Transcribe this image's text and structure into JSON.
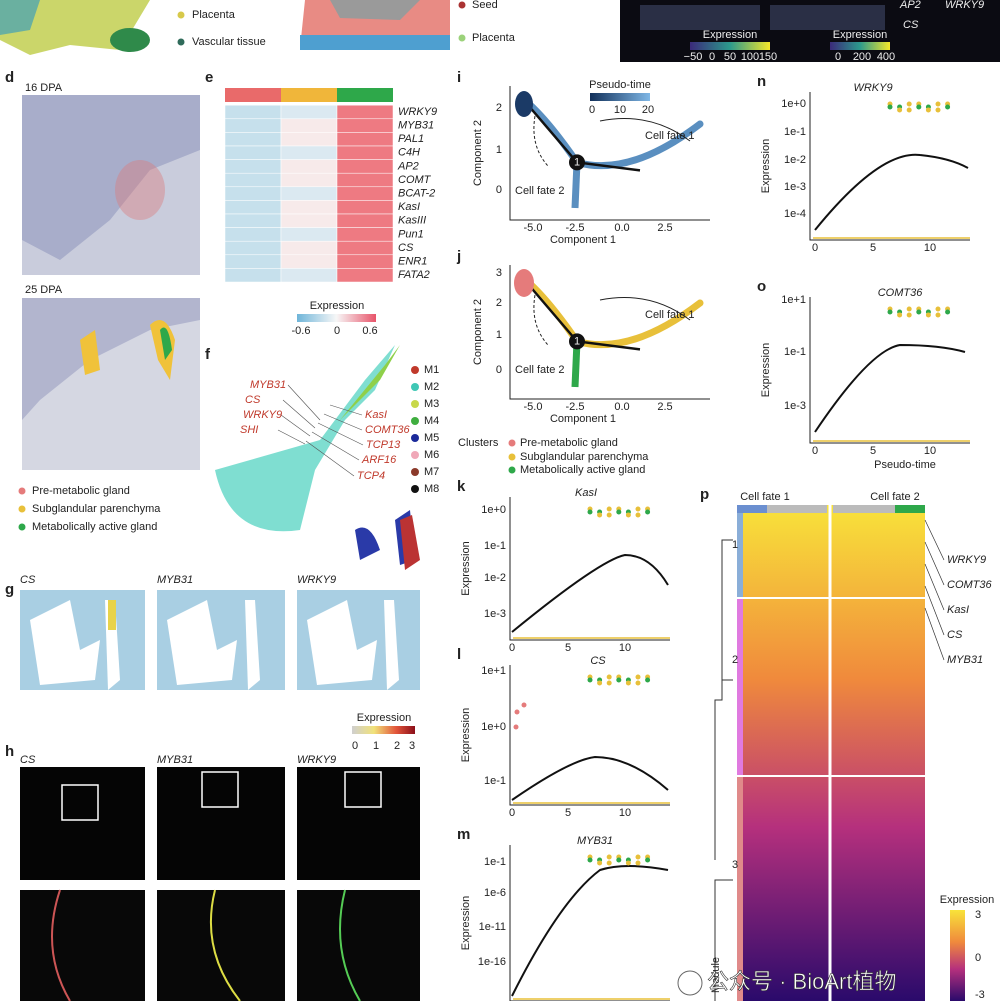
{
  "top": {
    "left_legend": [
      "Placenta",
      "Vascular tissue"
    ],
    "mid_legend": [
      "Seed",
      "Placenta"
    ],
    "right_genes": [
      "AP2",
      "WRKY9",
      "CS"
    ],
    "colorbars": [
      {
        "title": "Expression",
        "ticks": [
          "−50",
          "0",
          "50",
          "100",
          "150"
        ]
      },
      {
        "title": "Expression",
        "ticks": [
          "0",
          "200",
          "400"
        ]
      }
    ]
  },
  "d": {
    "label": "d",
    "sections": [
      "16 DPA",
      "25 DPA"
    ],
    "legend": [
      "Pre-metabolic gland",
      "Subglandular parenchyma",
      "Metabolically active gland"
    ]
  },
  "e": {
    "label": "e",
    "genes": [
      "WRKY9",
      "MYB31",
      "PAL1",
      "C4H",
      "AP2",
      "COMT",
      "BCAT-2",
      "KasI",
      "KasIII",
      "Pun1",
      "CS",
      "ENR1",
      "FATA2"
    ],
    "legend_title": "Expression",
    "legend_ticks": [
      "-0.6",
      "0",
      "0.6"
    ]
  },
  "f": {
    "label": "f",
    "left_genes": [
      "MYB31",
      "CS",
      "WRKY9",
      "SHI"
    ],
    "right_genes": [
      "KasI",
      "COMT36",
      "TCP13",
      "ARF16",
      "TCP4"
    ],
    "modules": [
      "M1",
      "M2",
      "M3",
      "M4",
      "M5",
      "M6",
      "M7",
      "M8"
    ]
  },
  "g": {
    "label": "g",
    "genes": [
      "CS",
      "MYB31",
      "WRKY9"
    ],
    "legend_title": "Expression",
    "legend_ticks": [
      "0",
      "1",
      "2",
      "3"
    ]
  },
  "h": {
    "label": "h",
    "genes": [
      "CS",
      "MYB31",
      "WRKY9"
    ]
  },
  "i": {
    "label": "i",
    "legend_title": "Pseudo-time",
    "legend_ticks": [
      "0",
      "10",
      "20"
    ],
    "fate1": "Cell fate 1",
    "fate2": "Cell fate 2",
    "node": "1",
    "ylabel": "Component 2",
    "xlabel": "Component 1",
    "xticks": [
      "-5.0",
      "-2.5",
      "0.0",
      "2.5"
    ],
    "yticks": [
      "2",
      "1",
      "0"
    ]
  },
  "j": {
    "label": "j",
    "fate1": "Cell fate 1",
    "fate2": "Cell fate 2",
    "node": "1",
    "ylabel": "Component 2",
    "xlabel": "Component 1",
    "xticks": [
      "-5.0",
      "-2.5",
      "0.0",
      "2.5"
    ],
    "yticks": [
      "3",
      "2",
      "1",
      "0"
    ],
    "legend_title": "Clusters",
    "legend": [
      "Pre-metabolic gland",
      "Subglandular parenchyma",
      "Metabolically active gland"
    ]
  },
  "k": {
    "label": "k",
    "title": "KasI",
    "ylabel": "Expression",
    "yticks": [
      "1e+0",
      "1e-1",
      "1e-2",
      "1e-3"
    ],
    "xticks": [
      "0",
      "5",
      "10"
    ]
  },
  "l": {
    "label": "l",
    "title": "CS",
    "ylabel": "Expression",
    "yticks": [
      "1e+1",
      "1e+0",
      "1e-1"
    ],
    "xticks": [
      "0",
      "5",
      "10"
    ]
  },
  "m": {
    "label": "m",
    "title": "MYB31",
    "ylabel": "Expression",
    "yticks": [
      "1e-1",
      "1e-6",
      "1e-11",
      "1e-16"
    ],
    "xticks": [
      "0",
      "5",
      "10"
    ]
  },
  "n": {
    "label": "n",
    "title": "WRKY9",
    "ylabel": "Expression",
    "yticks": [
      "1e+0",
      "1e-1",
      "1e-2",
      "1e-3",
      "1e-4"
    ],
    "xticks": [
      "0",
      "5",
      "10"
    ]
  },
  "o": {
    "label": "o",
    "title": "COMT36",
    "ylabel": "Expression",
    "yticks": [
      "1e+1",
      "1e-1",
      "1e-3"
    ],
    "xticks": [
      "0",
      "5",
      "10"
    ],
    "xlabel": "Pseudo-time"
  },
  "p": {
    "label": "p",
    "fate1": "Cell fate 1",
    "fate2": "Cell fate 2",
    "genes": [
      "WRKY9",
      "COMT36",
      "KasI",
      "CS",
      "MYB31"
    ],
    "modules": [
      "1",
      "2",
      "3"
    ],
    "module_label": "Module",
    "legend_title": "Expression",
    "legend_ticks": [
      "3",
      "0",
      "-3"
    ]
  },
  "watermark": "公众号 · BioArt植物"
}
